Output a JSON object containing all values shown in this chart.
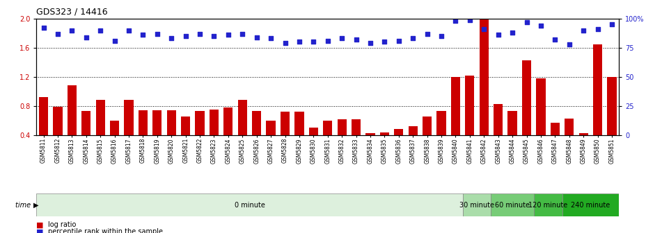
{
  "title": "GDS323 / 14416",
  "samples": [
    "GSM5811",
    "GSM5812",
    "GSM5813",
    "GSM5814",
    "GSM5815",
    "GSM5816",
    "GSM5817",
    "GSM5818",
    "GSM5819",
    "GSM5820",
    "GSM5821",
    "GSM5822",
    "GSM5823",
    "GSM5824",
    "GSM5825",
    "GSM5826",
    "GSM5827",
    "GSM5828",
    "GSM5829",
    "GSM5830",
    "GSM5831",
    "GSM5832",
    "GSM5833",
    "GSM5834",
    "GSM5835",
    "GSM5836",
    "GSM5837",
    "GSM5838",
    "GSM5839",
    "GSM5840",
    "GSM5841",
    "GSM5842",
    "GSM5843",
    "GSM5844",
    "GSM5845",
    "GSM5846",
    "GSM5847",
    "GSM5848",
    "GSM5849",
    "GSM5850",
    "GSM5851"
  ],
  "log_ratio": [
    0.92,
    0.79,
    1.08,
    0.73,
    0.88,
    0.6,
    0.88,
    0.74,
    0.74,
    0.74,
    0.66,
    0.73,
    0.75,
    0.78,
    0.88,
    0.73,
    0.6,
    0.72,
    0.72,
    0.5,
    0.6,
    0.62,
    0.62,
    0.43,
    0.44,
    0.48,
    0.52,
    0.66,
    0.73,
    1.2,
    1.22,
    1.99,
    0.83,
    0.73,
    1.43,
    1.18,
    0.57,
    0.63,
    0.43,
    1.65,
    1.2
  ],
  "percentile": [
    92,
    87,
    90,
    84,
    90,
    81,
    90,
    86,
    87,
    83,
    85,
    87,
    85,
    86,
    87,
    84,
    83,
    79,
    80,
    80,
    81,
    83,
    82,
    79,
    80,
    81,
    83,
    87,
    85,
    98,
    99,
    91,
    86,
    88,
    97,
    94,
    82,
    78,
    90,
    91,
    95
  ],
  "bar_color": "#cc0000",
  "dot_color": "#2222cc",
  "ylim_left": [
    0.4,
    2.0
  ],
  "ylim_right": [
    0,
    100
  ],
  "yticks_left": [
    0.4,
    0.8,
    1.2,
    1.6,
    2.0
  ],
  "yticks_right": [
    0,
    25,
    50,
    75,
    100
  ],
  "time_groups": [
    {
      "label": "0 minute",
      "start": 0,
      "end": 29,
      "color": "#ddf0dd"
    },
    {
      "label": "30 minute",
      "start": 30,
      "end": 31,
      "color": "#aaddaa"
    },
    {
      "label": "60 minute",
      "start": 32,
      "end": 34,
      "color": "#77cc77"
    },
    {
      "label": "120 minute",
      "start": 35,
      "end": 36,
      "color": "#44bb44"
    },
    {
      "label": "240 minute",
      "start": 37,
      "end": 40,
      "color": "#22aa22"
    }
  ],
  "bg_color": "#ffffff",
  "title_fontsize": 9,
  "tick_fontsize": 5.5,
  "legend_labels": [
    "log ratio",
    "percentile rank within the sample"
  ],
  "legend_colors": [
    "#cc0000",
    "#2222cc"
  ]
}
